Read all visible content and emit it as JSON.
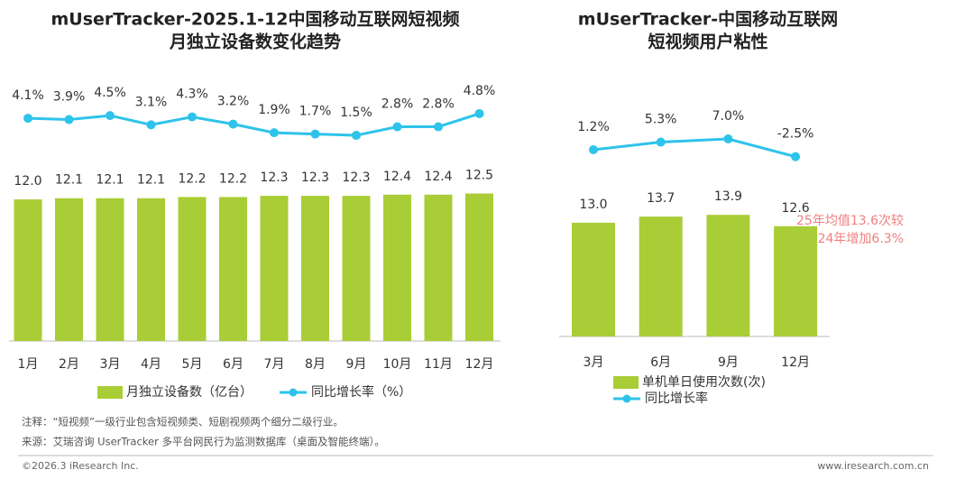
{
  "chart_data": [
    {
      "type": "bar-line",
      "title": [
        "mUserTracker-2025.1-12中国移动互联网短视频",
        "月独立设备数变化趋势"
      ],
      "categories": [
        "1月",
        "2月",
        "3月",
        "4月",
        "5月",
        "6月",
        "7月",
        "8月",
        "9月",
        "10月",
        "11月",
        "12月"
      ],
      "series": [
        {
          "name": "月独立设备数（亿台）",
          "color": "#a9cd36",
          "values": [
            12.0,
            12.1,
            12.1,
            12.1,
            12.2,
            12.2,
            12.3,
            12.3,
            12.3,
            12.4,
            12.4,
            12.5
          ],
          "value_labels": [
            "12.0",
            "12.1",
            "12.1",
            "12.1",
            "12.2",
            "12.2",
            "12.3",
            "12.3",
            "12.3",
            "12.4",
            "12.4",
            "12.5"
          ]
        },
        {
          "name": "同比增长率（%）",
          "color": "#2ec3ea",
          "values": [
            4.1,
            3.9,
            4.5,
            3.1,
            4.3,
            3.2,
            1.9,
            1.7,
            1.5,
            2.8,
            2.8,
            4.8
          ],
          "value_labels": [
            "4.1%",
            "3.9%",
            "4.5%",
            "3.1%",
            "4.3%",
            "3.2%",
            "1.9%",
            "1.7%",
            "1.5%",
            "2.8%",
            "2.8%",
            "4.8%"
          ]
        }
      ]
    },
    {
      "type": "bar-line",
      "title": [
        "mUserTracker-中国移动互联网",
        "短视频用户粘性"
      ],
      "categories": [
        "3月",
        "6月",
        "9月",
        "12月"
      ],
      "series": [
        {
          "name": "单机单日使用次数(次)",
          "color": "#a9cd36",
          "values": [
            13.0,
            13.7,
            13.9,
            12.6
          ],
          "value_labels": [
            "13.0",
            "13.7",
            "13.9",
            "12.6"
          ]
        },
        {
          "name": "同比增长率",
          "color": "#2ec3ea",
          "values": [
            1.2,
            5.3,
            7.0,
            -2.5
          ],
          "value_labels": [
            "1.2%",
            "5.3%",
            "7.0%",
            "-2.5%"
          ]
        }
      ],
      "annotation": [
        "25年均值13.6次较",
        "24年增加6.3%"
      ],
      "annotation_color": "#f07f7f"
    }
  ],
  "notes": [
    "注释：“短视频”一级行业包含短视频类、短剧视频两个细分二级行业。",
    "来源：艾瑞咨询 UserTracker 多平台网民行为监测数据库（桌面及智能终端）。"
  ],
  "footer": {
    "left": "©2026.3 iResearch Inc.",
    "right": "www.iresearch.com.cn"
  }
}
